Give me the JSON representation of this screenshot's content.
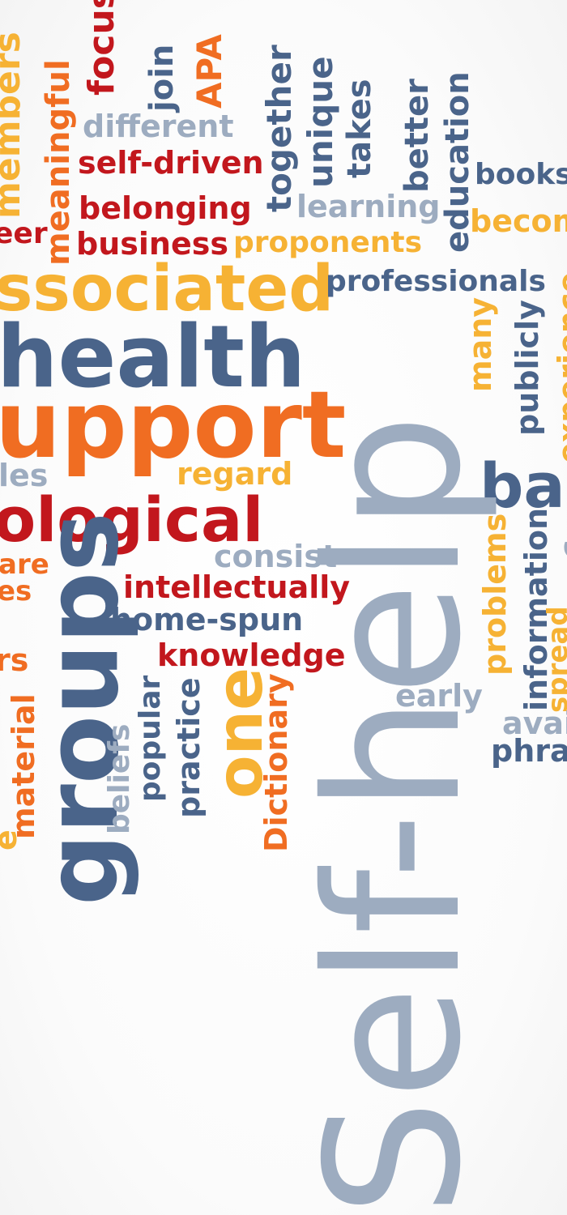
{
  "words": {
    "focus": "focus",
    "join": "join",
    "apa": "APA",
    "members": "members",
    "meaningful": "meaningful",
    "different": "different",
    "self_driven": "self-driven",
    "together": "together",
    "unique": "unique",
    "takes": "takes",
    "better": "better",
    "education": "education",
    "books": "books",
    "becom": "becom",
    "belonging": "belonging",
    "learning": "learning",
    "eer": "eer",
    "business": "business",
    "proponents": "proponents",
    "associated": "ssociated",
    "professionals": "professionals",
    "health": "health",
    "support": "upport",
    "many": "many",
    "publicly": "publicly",
    "experience": "experience",
    "les": "les",
    "regard": "regard",
    "ba": "ba",
    "ological": "ological",
    "consist": "consist",
    "are": "are",
    "es": "es",
    "intellectually": "intellectually",
    "home_spun": "home-spun",
    "rs": "rs",
    "knowledge": "knowledge",
    "groups": "groups",
    "self_help": "Self-help",
    "problems": "problems",
    "information": "information",
    "spread": "spread",
    "early": "early",
    "avai": "avai",
    "phra": "phra",
    "material": "material",
    "beliefs": "beliefs",
    "popular": "popular",
    "practice": "practice",
    "one": "one",
    "dictionary": "Dictionary",
    "e": "e",
    "c": "c"
  },
  "colors": {
    "blue": "#4a648a",
    "grey": "#9dacc0",
    "red": "#c2171d",
    "orange": "#f06d22",
    "yellow": "#f6b234"
  }
}
